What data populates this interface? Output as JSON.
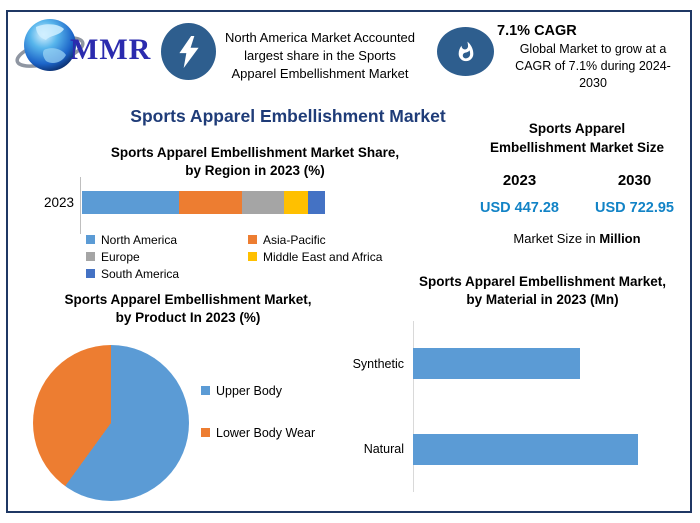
{
  "header": {
    "logo": {
      "text": "MMR"
    },
    "highlight": {
      "text": "North America Market Accounted\nlargest share in the Sports\nApparel Embellishment Market"
    },
    "cagr": {
      "title": "7.1% CAGR",
      "text": "Global Market to grow at a\nCAGR of 7.1% during 2024-\n2030"
    }
  },
  "page_title": "Sports Apparel Embellishment Market",
  "sections": {
    "region": {
      "title": "Sports Apparel Embellishment Market Share,\nby Region in 2023 (%)"
    },
    "size": {
      "title": "Sports Apparel\nEmbellishment Market Size",
      "year_left": "2023",
      "year_right": "2030",
      "value_left": "USD 447.28",
      "value_right": "USD 722.95",
      "note_prefix": "Market Size in ",
      "note_bold": "Million"
    },
    "product": {
      "title": "Sports Apparel Embellishment Market,\nby Product In 2023 (%)"
    },
    "material": {
      "title": "Sports Apparel Embellishment Market,\nby Material in 2023 (Mn)"
    }
  },
  "chart_data": [
    {
      "type": "bar",
      "subtype": "stacked-horizontal",
      "title": "Sports Apparel Embellishment Market Share, by Region in 2023 (%)",
      "categories": [
        "2023"
      ],
      "series": [
        {
          "name": "North America",
          "values": [
            40
          ],
          "color": "#5B9BD5"
        },
        {
          "name": "Asia-Pacific",
          "values": [
            26
          ],
          "color": "#ED7D31"
        },
        {
          "name": "Europe",
          "values": [
            17
          ],
          "color": "#A5A5A5"
        },
        {
          "name": "Middle East and Africa",
          "values": [
            10
          ],
          "color": "#FFC000"
        },
        {
          "name": "South America",
          "values": [
            7
          ],
          "color": "#4472C4"
        }
      ],
      "xlim": [
        0,
        100
      ],
      "unit": "%",
      "legend_position": "bottom",
      "values_estimated": true
    },
    {
      "type": "pie",
      "title": "Sports Apparel Embellishment Market, by Product In 2023 (%)",
      "labels": [
        "Upper Body",
        "Lower Body Wear"
      ],
      "values": [
        60,
        40
      ],
      "colors": [
        "#5B9BD5",
        "#ED7D31"
      ],
      "unit": "%",
      "legend_position": "right",
      "values_estimated": true
    },
    {
      "type": "bar",
      "subtype": "horizontal",
      "title": "Sports Apparel Embellishment Market, by Material in 2023 (Mn)",
      "categories": [
        "Synthetic",
        "Natural"
      ],
      "values": [
        74,
        100
      ],
      "bar_color": "#5B9BD5",
      "value_scale": "relative-percent-of-longest-bar",
      "values_estimated": true
    }
  ],
  "colors": {
    "border": "#1F3864",
    "title_navy": "#1F3C78",
    "badge_blue": "#2E5E8E",
    "value_blue": "#1283C6",
    "bar_blue": "#5B9BD5"
  }
}
